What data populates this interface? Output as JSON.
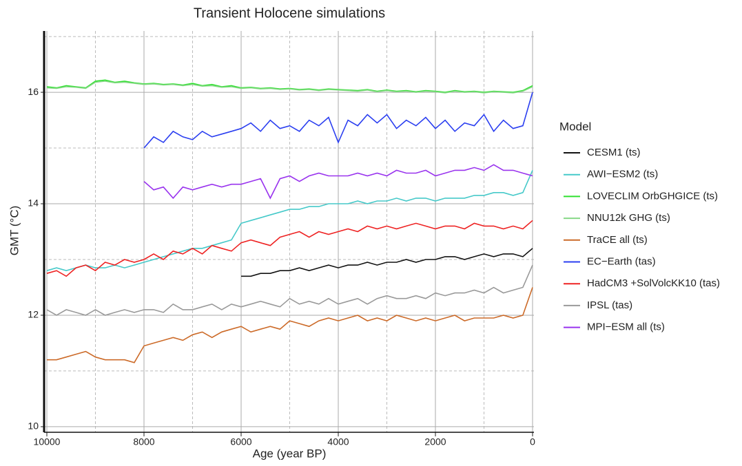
{
  "chart_data": {
    "type": "line",
    "title": "Transient Holocene simulations",
    "xlabel": "Age (year BP)",
    "ylabel": "GMT (°C)",
    "legend_title": "Model",
    "legend_position": "right",
    "grid": true,
    "xlim": [
      10000,
      0
    ],
    "ylim": [
      9.9,
      17.1
    ],
    "xticks": [
      10000,
      8000,
      6000,
      4000,
      2000,
      0
    ],
    "yticks": [
      10,
      12,
      14,
      16
    ],
    "x_minor_grid": [
      9000,
      7000,
      5000,
      3000,
      1000
    ],
    "y_minor_grid": [
      11,
      13,
      15,
      17
    ],
    "x": [
      10000,
      9800,
      9600,
      9400,
      9200,
      9000,
      8800,
      8600,
      8400,
      8200,
      8000,
      7800,
      7600,
      7400,
      7200,
      7000,
      6800,
      6600,
      6400,
      6200,
      6000,
      5800,
      5600,
      5400,
      5200,
      5000,
      4800,
      4600,
      4400,
      4200,
      4000,
      3800,
      3600,
      3400,
      3200,
      3000,
      2800,
      2600,
      2400,
      2200,
      2000,
      1800,
      1600,
      1400,
      1200,
      1000,
      800,
      600,
      400,
      200,
      0
    ],
    "series": [
      {
        "name": "CESM1 (ts)",
        "color": "#111111",
        "values": [
          null,
          null,
          null,
          null,
          null,
          null,
          null,
          null,
          null,
          null,
          null,
          null,
          null,
          null,
          null,
          null,
          null,
          null,
          null,
          null,
          12.7,
          12.7,
          12.75,
          12.75,
          12.8,
          12.8,
          12.85,
          12.8,
          12.85,
          12.9,
          12.85,
          12.9,
          12.9,
          12.95,
          12.9,
          12.95,
          12.95,
          13.0,
          12.95,
          13.0,
          13.0,
          13.05,
          13.05,
          13.0,
          13.05,
          13.1,
          13.05,
          13.1,
          13.1,
          13.05,
          13.2
        ]
      },
      {
        "name": "AWI−ESM2 (ts)",
        "color": "#45c9c9",
        "values": [
          12.8,
          12.85,
          12.8,
          12.85,
          12.9,
          12.85,
          12.85,
          12.9,
          12.85,
          12.9,
          12.95,
          13.0,
          13.05,
          13.1,
          13.15,
          13.2,
          13.2,
          13.25,
          13.3,
          13.35,
          13.65,
          13.7,
          13.75,
          13.8,
          13.85,
          13.9,
          13.9,
          13.95,
          13.95,
          14.0,
          14.0,
          14.0,
          14.05,
          14.0,
          14.05,
          14.05,
          14.1,
          14.05,
          14.1,
          14.1,
          14.05,
          14.1,
          14.1,
          14.1,
          14.15,
          14.15,
          14.2,
          14.2,
          14.15,
          14.2,
          14.6
        ]
      },
      {
        "name": "LOVECLIM OrbGHGICE (ts)",
        "color": "#2ee02e",
        "values": [
          16.1,
          16.08,
          16.12,
          16.1,
          16.08,
          16.2,
          16.22,
          16.18,
          16.2,
          16.17,
          16.15,
          16.16,
          16.14,
          16.15,
          16.13,
          16.16,
          16.12,
          16.14,
          16.1,
          16.12,
          16.08,
          16.09,
          16.07,
          16.08,
          16.06,
          16.07,
          16.05,
          16.06,
          16.04,
          16.06,
          16.05,
          16.04,
          16.03,
          16.05,
          16.02,
          16.04,
          16.02,
          16.03,
          16.01,
          16.03,
          16.02,
          16.0,
          16.03,
          16.01,
          16.02,
          16.0,
          16.02,
          16.01,
          16.0,
          16.03,
          16.12
        ]
      },
      {
        "name": "NNU12k GHG (ts)",
        "color": "#86d886",
        "values": [
          16.08,
          16.07,
          16.1,
          16.09,
          16.07,
          16.18,
          16.2,
          16.17,
          16.18,
          16.16,
          16.14,
          16.15,
          16.13,
          16.14,
          16.12,
          16.14,
          16.11,
          16.12,
          16.09,
          16.1,
          16.07,
          16.08,
          16.06,
          16.07,
          16.05,
          16.06,
          16.04,
          16.05,
          16.03,
          16.05,
          16.04,
          16.03,
          16.02,
          16.04,
          16.01,
          16.03,
          16.01,
          16.02,
          16.0,
          16.02,
          16.01,
          15.99,
          16.02,
          16.0,
          16.01,
          15.99,
          16.01,
          16.0,
          15.99,
          16.02,
          16.1
        ]
      },
      {
        "name": "TraCE all (ts)",
        "color": "#cc6a28",
        "values": [
          11.2,
          11.2,
          11.25,
          11.3,
          11.35,
          11.25,
          11.2,
          11.2,
          11.2,
          11.15,
          11.45,
          11.5,
          11.55,
          11.6,
          11.55,
          11.65,
          11.7,
          11.6,
          11.7,
          11.75,
          11.8,
          11.7,
          11.75,
          11.8,
          11.75,
          11.9,
          11.85,
          11.8,
          11.9,
          11.95,
          11.9,
          11.95,
          12.0,
          11.9,
          11.95,
          11.9,
          12.0,
          11.95,
          11.9,
          11.95,
          11.9,
          11.95,
          12.0,
          11.9,
          11.95,
          11.95,
          11.95,
          12.0,
          11.95,
          12.0,
          12.5
        ]
      },
      {
        "name": "EC−Earth (tas)",
        "color": "#2a3ef0",
        "values": [
          null,
          null,
          null,
          null,
          null,
          null,
          null,
          null,
          null,
          null,
          15.0,
          15.2,
          15.1,
          15.3,
          15.2,
          15.15,
          15.3,
          15.2,
          15.25,
          15.3,
          15.35,
          15.45,
          15.3,
          15.5,
          15.35,
          15.4,
          15.3,
          15.5,
          15.4,
          15.55,
          15.1,
          15.5,
          15.4,
          15.6,
          15.45,
          15.6,
          15.35,
          15.5,
          15.4,
          15.55,
          15.35,
          15.5,
          15.3,
          15.45,
          15.4,
          15.6,
          15.3,
          15.5,
          15.35,
          15.4,
          16.0
        ]
      },
      {
        "name": "HadCM3 +SolVolcKK10 (tas)",
        "color": "#ee2222",
        "values": [
          12.75,
          12.8,
          12.7,
          12.85,
          12.9,
          12.8,
          12.95,
          12.9,
          13.0,
          12.95,
          13.0,
          13.1,
          13.0,
          13.15,
          13.1,
          13.2,
          13.1,
          13.25,
          13.2,
          13.15,
          13.3,
          13.35,
          13.3,
          13.25,
          13.4,
          13.45,
          13.5,
          13.4,
          13.5,
          13.45,
          13.5,
          13.55,
          13.5,
          13.6,
          13.55,
          13.6,
          13.55,
          13.6,
          13.65,
          13.6,
          13.55,
          13.6,
          13.6,
          13.55,
          13.65,
          13.6,
          13.6,
          13.55,
          13.6,
          13.55,
          13.7
        ]
      },
      {
        "name": "IPSL (tas)",
        "color": "#999999",
        "values": [
          12.1,
          12.0,
          12.1,
          12.05,
          12.0,
          12.1,
          12.0,
          12.05,
          12.1,
          12.05,
          12.1,
          12.1,
          12.05,
          12.2,
          12.1,
          12.1,
          12.15,
          12.2,
          12.1,
          12.2,
          12.15,
          12.2,
          12.25,
          12.2,
          12.15,
          12.3,
          12.2,
          12.25,
          12.2,
          12.3,
          12.2,
          12.25,
          12.3,
          12.2,
          12.3,
          12.35,
          12.3,
          12.3,
          12.35,
          12.3,
          12.4,
          12.35,
          12.4,
          12.4,
          12.45,
          12.4,
          12.5,
          12.4,
          12.45,
          12.5,
          12.9
        ]
      },
      {
        "name": "MPI−ESM all (ts)",
        "color": "#9933ee",
        "values": [
          null,
          null,
          null,
          null,
          null,
          null,
          null,
          null,
          null,
          null,
          14.4,
          14.25,
          14.3,
          14.1,
          14.3,
          14.25,
          14.3,
          14.35,
          14.3,
          14.35,
          14.35,
          14.4,
          14.45,
          14.1,
          14.45,
          14.5,
          14.4,
          14.5,
          14.55,
          14.5,
          14.5,
          14.5,
          14.55,
          14.5,
          14.55,
          14.5,
          14.6,
          14.55,
          14.55,
          14.6,
          14.5,
          14.55,
          14.6,
          14.6,
          14.65,
          14.6,
          14.7,
          14.6,
          14.6,
          14.55,
          14.5
        ]
      }
    ]
  }
}
